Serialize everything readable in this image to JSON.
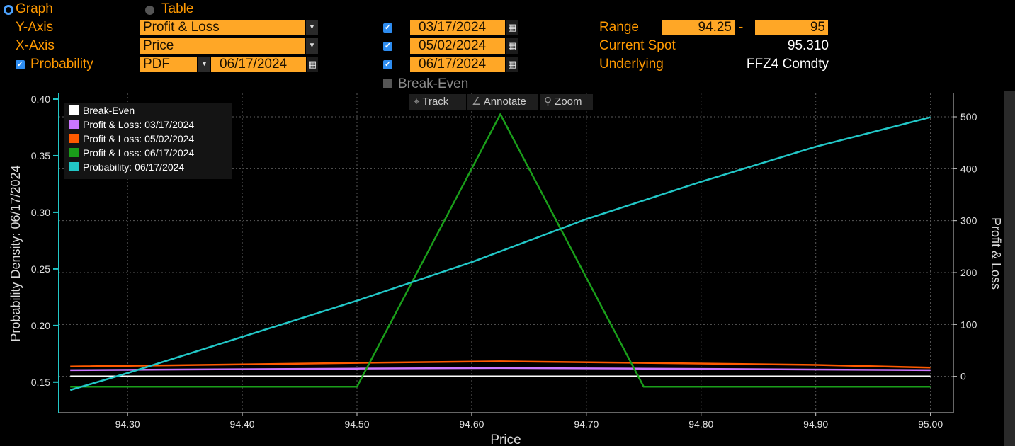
{
  "controls": {
    "view_graph": "Graph",
    "view_table": "Table",
    "yaxis_label": "Y-Axis",
    "yaxis_value": "Profit & Loss",
    "xaxis_label": "X-Axis",
    "xaxis_value": "Price",
    "probability_label": "Probability",
    "probability_type": "PDF",
    "probability_date": "06/17/2024",
    "dates": [
      "03/17/2024",
      "05/02/2024",
      "06/17/2024"
    ],
    "range_label": "Range",
    "range_min": "94.25",
    "range_sep": "-",
    "range_max": "95",
    "spot_label": "Current Spot",
    "spot_value": "95.310",
    "underlying_label": "Underlying",
    "underlying_value": "FFZ4 Comdty",
    "breakeven_toggle": "Break-Even"
  },
  "toolbar": {
    "track": "Track",
    "annotate": "Annotate",
    "zoom": "Zoom"
  },
  "icons": {
    "track": "crosshair-icon",
    "annotate": "pencil-icon",
    "zoom": "magnifier-icon",
    "calendar": "calendar-icon",
    "dropdown": "chevron-down-icon"
  },
  "chart_data": {
    "type": "line",
    "xlabel": "Price",
    "ylabel_left": "Probability Density: 06/17/2024",
    "ylabel_right": "Profit & Loss",
    "xlim": [
      94.24,
      95.02
    ],
    "ylim_left": [
      0.123,
      0.405
    ],
    "ylim_right": [
      -70,
      545
    ],
    "xticks": [
      "94.30",
      "94.40",
      "94.50",
      "94.60",
      "94.70",
      "94.80",
      "94.90",
      "95.00"
    ],
    "yticks_left": [
      "0.15",
      "0.20",
      "0.25",
      "0.30",
      "0.35",
      "0.40"
    ],
    "yticks_right": [
      "0",
      "100",
      "200",
      "300",
      "400",
      "500"
    ],
    "grid": true,
    "legend_position": "top-left",
    "series": [
      {
        "name": "Break-Even",
        "axis": "right",
        "color": "#ffffff",
        "x": [
          94.25,
          95.0
        ],
        "y": [
          0,
          0
        ]
      },
      {
        "name": "Profit & Loss: 03/17/2024",
        "axis": "right",
        "color": "#cc77ff",
        "x": [
          94.25,
          94.5,
          94.625,
          94.75,
          95.0
        ],
        "y": [
          12,
          15,
          16,
          15,
          12
        ]
      },
      {
        "name": "Profit & Loss: 05/02/2024",
        "axis": "right",
        "color": "#ff5a00",
        "x": [
          94.25,
          94.4,
          94.5,
          94.625,
          94.75,
          94.9,
          95.0
        ],
        "y": [
          19,
          23,
          26,
          29,
          26,
          22,
          17
        ]
      },
      {
        "name": "Profit & Loss: 06/17/2024",
        "axis": "right",
        "color": "#1a9e1a",
        "x": [
          94.25,
          94.5,
          94.625,
          94.75,
          95.0
        ],
        "y": [
          -20,
          -20,
          505,
          -20,
          -20
        ]
      },
      {
        "name": "Probability: 06/17/2024",
        "axis": "left",
        "color": "#22c7c7",
        "x": [
          94.25,
          94.3,
          94.4,
          94.5,
          94.6,
          94.7,
          94.8,
          94.9,
          95.0
        ],
        "y": [
          0.143,
          0.158,
          0.19,
          0.222,
          0.256,
          0.294,
          0.327,
          0.358,
          0.384
        ]
      }
    ]
  }
}
